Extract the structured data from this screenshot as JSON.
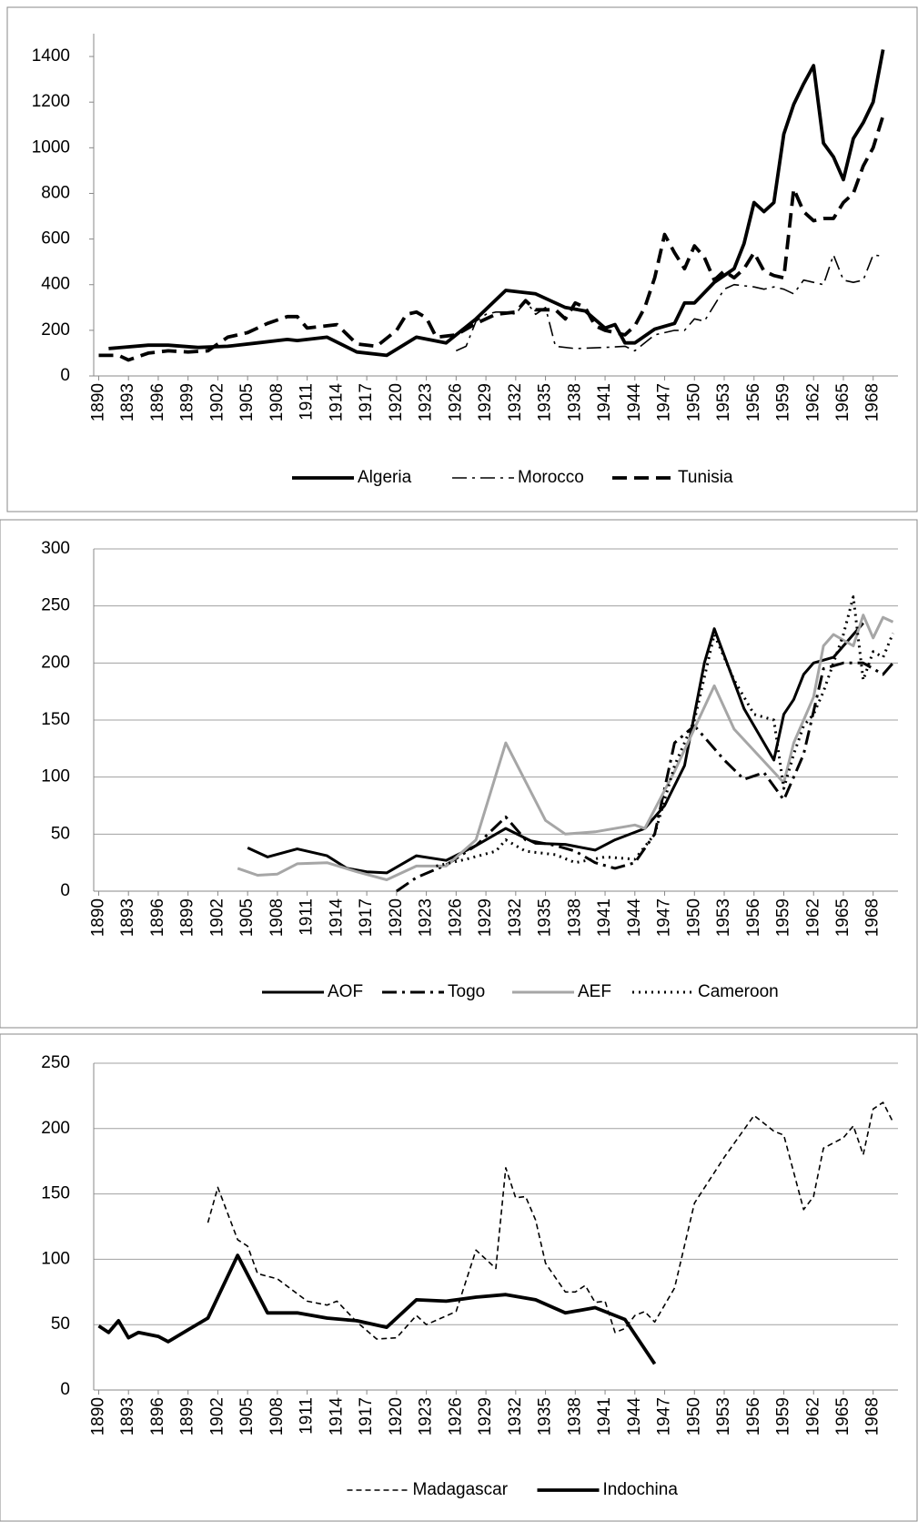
{
  "chart_data": [
    {
      "type": "line",
      "xlim": [
        1889.5,
        1970.5
      ],
      "ylim": [
        0,
        1500
      ],
      "yticks": [
        0,
        200,
        400,
        600,
        800,
        1000,
        1200,
        1400
      ],
      "grid": false,
      "xticks": [
        1890,
        1893,
        1896,
        1899,
        1902,
        1905,
        1908,
        1911,
        1914,
        1917,
        1920,
        1923,
        1926,
        1929,
        1932,
        1935,
        1938,
        1941,
        1944,
        1947,
        1950,
        1953,
        1956,
        1959,
        1962,
        1965,
        1968
      ],
      "series": [
        {
          "name": "Algeria",
          "color": "#000000",
          "dash": "solid",
          "width": "thick",
          "x": [
            1891,
            1895,
            1897,
            1900,
            1903,
            1906,
            1909,
            1910,
            1913,
            1916,
            1919,
            1922,
            1925,
            1928,
            1931,
            1934,
            1937,
            1939,
            1941,
            1942,
            1943,
            1944,
            1946,
            1948,
            1949,
            1950,
            1952,
            1954,
            1955,
            1956,
            1957,
            1958,
            1959,
            1960,
            1961,
            1962,
            1963,
            1964,
            1965,
            1966,
            1967,
            1968,
            1969
          ],
          "values": [
            120,
            135,
            135,
            125,
            130,
            145,
            160,
            155,
            170,
            105,
            90,
            170,
            145,
            250,
            375,
            360,
            300,
            285,
            210,
            225,
            145,
            145,
            205,
            230,
            320,
            320,
            410,
            470,
            580,
            760,
            720,
            760,
            1060,
            1190,
            1280,
            1360,
            1020,
            960,
            860,
            1040,
            1110,
            1200,
            1430
          ]
        },
        {
          "name": "Morocco",
          "color": "#000000",
          "dash": "dashdot",
          "width": "thin",
          "x": [
            1926,
            1927,
            1928,
            1929,
            1930,
            1931,
            1932,
            1933,
            1934,
            1935,
            1936,
            1938,
            1941,
            1943,
            1944,
            1946,
            1948,
            1949,
            1950,
            1951,
            1952,
            1953,
            1954,
            1956,
            1957,
            1958,
            1959,
            1960,
            1961,
            1962,
            1963,
            1964,
            1965,
            1966,
            1967,
            1968,
            1969
          ],
          "values": [
            110,
            130,
            240,
            270,
            280,
            280,
            270,
            330,
            270,
            300,
            130,
            120,
            125,
            130,
            110,
            180,
            200,
            200,
            250,
            240,
            310,
            380,
            400,
            390,
            380,
            390,
            380,
            360,
            420,
            410,
            400,
            530,
            420,
            410,
            420,
            530,
            525
          ]
        },
        {
          "name": "Tunisia",
          "color": "#000000",
          "dash": "dash",
          "width": "thick",
          "x": [
            1890,
            1892,
            1893,
            1895,
            1897,
            1899,
            1901,
            1903,
            1905,
            1907,
            1909,
            1910,
            1911,
            1913,
            1914,
            1916,
            1918,
            1920,
            1921,
            1922,
            1923,
            1924,
            1926,
            1928,
            1930,
            1932,
            1933,
            1934,
            1936,
            1937,
            1938,
            1939,
            1940,
            1941,
            1943,
            1944,
            1945,
            1946,
            1947,
            1948,
            1949,
            1950,
            1951,
            1952,
            1953,
            1954,
            1955,
            1956,
            1957,
            1958,
            1959,
            1960,
            1961,
            1962,
            1963,
            1964,
            1965,
            1966,
            1967,
            1968,
            1969
          ],
          "values": [
            90,
            90,
            70,
            100,
            110,
            105,
            110,
            170,
            190,
            230,
            260,
            260,
            210,
            220,
            225,
            140,
            130,
            200,
            270,
            280,
            255,
            170,
            180,
            230,
            270,
            280,
            330,
            290,
            290,
            250,
            320,
            300,
            220,
            200,
            180,
            220,
            300,
            430,
            620,
            540,
            470,
            570,
            520,
            420,
            460,
            430,
            470,
            540,
            460,
            440,
            430,
            820,
            720,
            680,
            690,
            690,
            760,
            800,
            920,
            1000,
            1140
          ]
        }
      ]
    },
    {
      "type": "line",
      "xlim": [
        1889.5,
        1970.5
      ],
      "ylim": [
        0,
        300
      ],
      "yticks": [
        0,
        50,
        100,
        150,
        200,
        250,
        300
      ],
      "grid": true,
      "xticks": [
        1890,
        1893,
        1896,
        1899,
        1902,
        1905,
        1908,
        1911,
        1914,
        1917,
        1920,
        1923,
        1926,
        1929,
        1932,
        1935,
        1938,
        1941,
        1944,
        1947,
        1950,
        1953,
        1956,
        1959,
        1962,
        1965,
        1968
      ],
      "series": [
        {
          "name": "AOF",
          "color": "#000000",
          "dash": "solid",
          "width": "medium",
          "x": [
            1905,
            1907,
            1910,
            1913,
            1915,
            1917,
            1919,
            1922,
            1925,
            1928,
            1931,
            1934,
            1937,
            1940,
            1942,
            1945,
            1947,
            1949,
            1951,
            1952,
            1955,
            1958,
            1959,
            1960,
            1961,
            1962,
            1964,
            1966,
            1967
          ],
          "values": [
            38,
            30,
            37,
            31,
            20,
            17,
            16,
            31,
            27,
            40,
            55,
            42,
            41,
            36,
            45,
            55,
            75,
            110,
            200,
            230,
            160,
            115,
            155,
            168,
            190,
            200,
            205,
            225,
            235
          ]
        },
        {
          "name": "Togo",
          "color": "#000000",
          "dash": "dashdot",
          "width": "medium",
          "x": [
            1920,
            1922,
            1925,
            1928,
            1931,
            1933,
            1936,
            1938,
            1940,
            1942,
            1944,
            1946,
            1948,
            1950,
            1953,
            1955,
            1957,
            1959,
            1961,
            1963,
            1965,
            1967,
            1969,
            1970
          ],
          "values": [
            0,
            12,
            23,
            40,
            65,
            45,
            40,
            35,
            25,
            20,
            25,
            50,
            130,
            145,
            115,
            98,
            104,
            80,
            120,
            195,
            200,
            200,
            190,
            200
          ]
        },
        {
          "name": "AEF",
          "color": "#a6a6a6",
          "dash": "solid",
          "width": "medium",
          "x": [
            1904,
            1906,
            1908,
            1910,
            1913,
            1916,
            1919,
            1922,
            1925,
            1928,
            1931,
            1935,
            1937,
            1940,
            1944,
            1945,
            1948,
            1952,
            1954,
            1959,
            1960,
            1962,
            1963,
            1964,
            1966,
            1967,
            1968,
            1969,
            1970
          ],
          "values": [
            20,
            14,
            15,
            24,
            25,
            17,
            10,
            22,
            22,
            45,
            130,
            62,
            50,
            52,
            58,
            55,
            105,
            180,
            142,
            95,
            130,
            170,
            215,
            225,
            215,
            242,
            222,
            240,
            236
          ]
        },
        {
          "name": "Cameroon",
          "color": "#000000",
          "dash": "dot",
          "width": "medium",
          "x": [
            1924,
            1927,
            1930,
            1931,
            1933,
            1936,
            1938,
            1941,
            1944,
            1946,
            1948,
            1950,
            1952,
            1954,
            1956,
            1958,
            1959,
            1960,
            1961,
            1962,
            1963,
            1965,
            1966,
            1967,
            1968,
            1969,
            1970
          ],
          "values": [
            22,
            28,
            35,
            45,
            35,
            32,
            25,
            30,
            28,
            50,
            110,
            150,
            225,
            185,
            155,
            150,
            90,
            120,
            145,
            155,
            175,
            225,
            258,
            185,
            210,
            205,
            226
          ]
        }
      ]
    },
    {
      "type": "line",
      "xlim": [
        1889.5,
        1970.5
      ],
      "ylim": [
        0,
        250
      ],
      "yticks": [
        0,
        50,
        100,
        150,
        200,
        250
      ],
      "grid": true,
      "xticks": [
        1890,
        1893,
        1896,
        1899,
        1902,
        1905,
        1908,
        1911,
        1914,
        1917,
        1920,
        1923,
        1926,
        1929,
        1932,
        1935,
        1938,
        1941,
        1944,
        1947,
        1950,
        1953,
        1956,
        1959,
        1962,
        1965,
        1968
      ],
      "series": [
        {
          "name": "Madagascar",
          "color": "#000000",
          "dash": "shortdash",
          "width": "thin",
          "x": [
            1901,
            1902,
            1904,
            1905,
            1906,
            1908,
            1911,
            1913,
            1914,
            1916,
            1918,
            1920,
            1922,
            1923,
            1926,
            1928,
            1930,
            1931,
            1932,
            1933,
            1934,
            1935,
            1937,
            1938,
            1939,
            1940,
            1941,
            1942,
            1943,
            1944,
            1945,
            1946,
            1948,
            1950,
            1953,
            1956,
            1958,
            1959,
            1961,
            1962,
            1963,
            1965,
            1966,
            1967,
            1968,
            1969,
            1970
          ],
          "values": [
            128,
            155,
            115,
            110,
            89,
            85,
            68,
            65,
            68,
            52,
            39,
            40,
            57,
            50,
            60,
            107,
            93,
            170,
            147,
            148,
            130,
            97,
            75,
            75,
            80,
            67,
            68,
            44,
            47,
            57,
            60,
            52,
            78,
            143,
            178,
            210,
            198,
            195,
            138,
            148,
            185,
            193,
            202,
            180,
            215,
            220,
            205
          ]
        },
        {
          "name": "Indochina",
          "color": "#000000",
          "dash": "solid",
          "width": "thick",
          "x": [
            1890,
            1891,
            1892,
            1893,
            1894,
            1896,
            1897,
            1899,
            1901,
            1904,
            1907,
            1910,
            1913,
            1916,
            1919,
            1922,
            1925,
            1928,
            1931,
            1934,
            1937,
            1940,
            1943,
            1946
          ],
          "values": [
            49,
            44,
            53,
            40,
            44,
            41,
            37,
            46,
            55,
            103,
            59,
            59,
            55,
            53,
            48,
            69,
            68,
            71,
            73,
            69,
            59,
            63,
            54,
            20
          ]
        }
      ]
    }
  ]
}
